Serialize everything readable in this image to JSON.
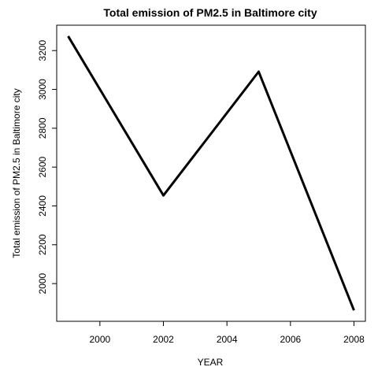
{
  "chart_data": {
    "type": "line",
    "title": "Total emission of PM2.5 in Baltimore city",
    "xlabel": "YEAR",
    "ylabel": "Total emission of PM2.5 in Baltimore city",
    "x": [
      1999,
      2002,
      2005,
      2008
    ],
    "series": [
      {
        "values": [
          3274.18,
          2453.92,
          3091.35,
          1862.28
        ]
      }
    ],
    "xticks": [
      2000,
      2002,
      2004,
      2006,
      2008
    ],
    "yticks": [
      2000,
      2200,
      2400,
      2600,
      2800,
      3000,
      3200
    ],
    "xlim": [
      1998.64,
      2008.36
    ],
    "ylim": [
      1805.8,
      3330.7
    ],
    "line_color": "#000000",
    "grid": false,
    "legend": "none"
  }
}
